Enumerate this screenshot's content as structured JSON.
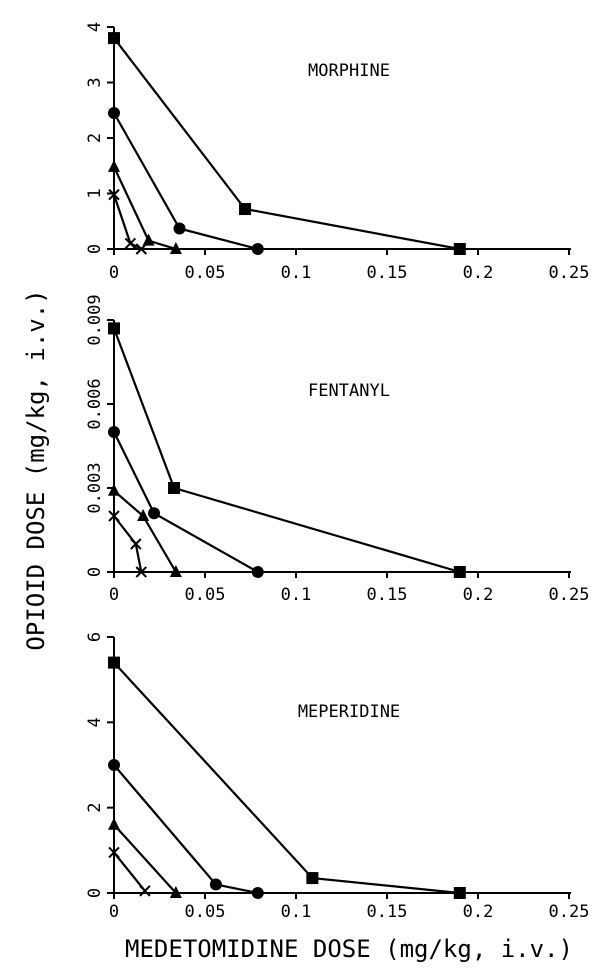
{
  "figure": {
    "ylabel": "OPIOID DOSE (mg/kg, i.v.)",
    "xlabel": "MEDETOMIDINE DOSE (mg/kg, i.v.)"
  },
  "chart_data": [
    {
      "type": "line",
      "title": "MORPHINE",
      "xlabel": "MEDETOMIDINE DOSE (mg/kg, i.v.)",
      "ylabel": "OPIOID DOSE (mg/kg, i.v.)",
      "xlim": [
        0,
        0.25
      ],
      "ylim": [
        0,
        4
      ],
      "xticks": [
        0,
        0.05,
        0.1,
        0.15,
        0.2,
        0.25
      ],
      "xtick_labels": [
        "0",
        "0.05",
        "0.1",
        "0.15",
        "0.2",
        "0.25"
      ],
      "yticks": [
        0,
        1,
        2,
        3,
        4
      ],
      "ytick_labels": [
        "0",
        "1",
        "2",
        "3",
        "4"
      ],
      "grid": false,
      "series": [
        {
          "marker": "square",
          "x": [
            0,
            0.072,
            0.19
          ],
          "y": [
            3.8,
            0.72,
            0
          ]
        },
        {
          "marker": "circle",
          "x": [
            0,
            0.036,
            0.079
          ],
          "y": [
            2.45,
            0.37,
            0
          ]
        },
        {
          "marker": "triangle",
          "x": [
            0,
            0.019,
            0.034
          ],
          "y": [
            1.48,
            0.15,
            0
          ]
        },
        {
          "marker": "cross",
          "x": [
            0,
            0.009,
            0.015
          ],
          "y": [
            0.98,
            0.1,
            0
          ]
        }
      ]
    },
    {
      "type": "line",
      "title": "FENTANYL",
      "xlabel": "MEDETOMIDINE DOSE (mg/kg, i.v.)",
      "ylabel": "OPIOID DOSE (mg/kg, i.v.)",
      "xlim": [
        0,
        0.25
      ],
      "ylim": [
        0,
        0.009
      ],
      "xticks": [
        0,
        0.05,
        0.1,
        0.15,
        0.2,
        0.25
      ],
      "xtick_labels": [
        "0",
        "0.05",
        "0.1",
        "0.15",
        "0.2",
        "0.25"
      ],
      "yticks": [
        0,
        0.003,
        0.006,
        0.009
      ],
      "ytick_labels": [
        "0",
        "0.003",
        "0.006",
        "0.009"
      ],
      "grid": false,
      "series": [
        {
          "marker": "square",
          "x": [
            0,
            0.033,
            0.19
          ],
          "y": [
            0.0087,
            0.003,
            0
          ]
        },
        {
          "marker": "circle",
          "x": [
            0,
            0.022,
            0.079
          ],
          "y": [
            0.005,
            0.0021,
            0
          ]
        },
        {
          "marker": "triangle",
          "x": [
            0,
            0.016,
            0.034
          ],
          "y": [
            0.0029,
            0.002,
            0
          ]
        },
        {
          "marker": "cross",
          "x": [
            0,
            0.012,
            0.015
          ],
          "y": [
            0.002,
            0.001,
            0
          ]
        }
      ]
    },
    {
      "type": "line",
      "title": "MEPERIDINE",
      "xlabel": "MEDETOMIDINE DOSE (mg/kg, i.v.)",
      "ylabel": "OPIOID DOSE (mg/kg, i.v.)",
      "xlim": [
        0,
        0.25
      ],
      "ylim": [
        0,
        6
      ],
      "xticks": [
        0,
        0.05,
        0.1,
        0.15,
        0.2,
        0.25
      ],
      "xtick_labels": [
        "0",
        "0.05",
        "0.1",
        "0.15",
        "0.2",
        "0.25"
      ],
      "yticks": [
        0,
        2,
        4,
        6
      ],
      "ytick_labels": [
        "0",
        "2",
        "4",
        "6"
      ],
      "grid": false,
      "series": [
        {
          "marker": "square",
          "x": [
            0,
            0.109,
            0.19
          ],
          "y": [
            5.4,
            0.35,
            0
          ]
        },
        {
          "marker": "circle",
          "x": [
            0,
            0.056,
            0.079
          ],
          "y": [
            3.0,
            0.2,
            0
          ]
        },
        {
          "marker": "triangle",
          "x": [
            0,
            0.034
          ],
          "y": [
            1.6,
            0
          ]
        },
        {
          "marker": "cross",
          "x": [
            0,
            0.017
          ],
          "y": [
            0.95,
            0.05
          ]
        }
      ]
    }
  ]
}
